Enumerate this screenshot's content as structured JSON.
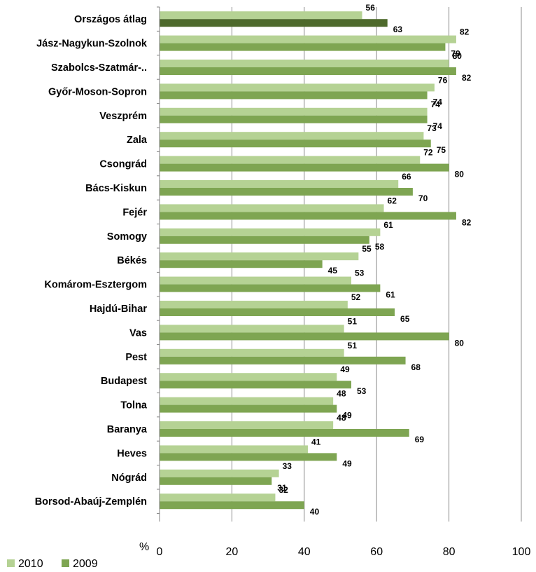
{
  "chart_data": {
    "type": "bar",
    "orientation": "horizontal",
    "categories": [
      "Országos átlag",
      "Jász-Nagykun-Szolnok",
      "Szabolcs-Szatmár-..",
      "Győr-Moson-Sopron",
      "Veszprém",
      "Zala",
      "Csongrád",
      "Bács-Kiskun",
      "Fejér",
      "Somogy",
      "Békés",
      "Komárom-Esztergom",
      "Hajdú-Bihar",
      "Vas",
      "Pest",
      "Budapest",
      "Tolna",
      "Baranya",
      "Heves",
      "Nógrád",
      "Borsod-Abaúj-Zemplén"
    ],
    "series": [
      {
        "name": "2010",
        "color": "#b5d294",
        "values": [
          56,
          82,
          80,
          76,
          74,
          73,
          72,
          66,
          62,
          61,
          55,
          53,
          52,
          51,
          51,
          49,
          48,
          48,
          41,
          33,
          32
        ]
      },
      {
        "name": "2009",
        "color": "#7ea552",
        "values": [
          63,
          79,
          82,
          74,
          74,
          75,
          80,
          70,
          82,
          58,
          45,
          61,
          65,
          80,
          68,
          53,
          49,
          69,
          49,
          31,
          40
        ]
      }
    ],
    "highlight": {
      "category_index": 0,
      "series_2009_color": "#4e6a2c"
    },
    "xlabel": "%",
    "xlim": [
      0,
      100
    ],
    "xticks": [
      "0",
      "20",
      "40",
      "60",
      "80",
      "100"
    ],
    "grid": "vertical",
    "legend_position": "bottom-left"
  }
}
